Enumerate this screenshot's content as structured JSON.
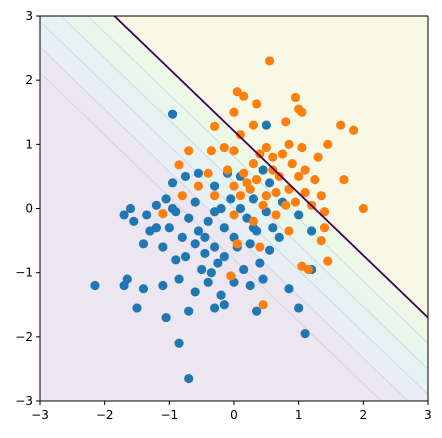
{
  "chart_data": {
    "type": "scatter",
    "title": "",
    "xlabel": "",
    "ylabel": "",
    "xlim": [
      -3,
      3
    ],
    "ylim": [
      -3,
      3
    ],
    "xticks": [
      "−3",
      "−2",
      "−1",
      "0",
      "1",
      "2",
      "3"
    ],
    "yticks": [
      "−3",
      "−2",
      "−1",
      "0",
      "1",
      "2",
      "3"
    ],
    "xtick_values": [
      -3,
      -2,
      -1,
      0,
      1,
      2,
      3
    ],
    "ytick_values": [
      -3,
      -2,
      -1,
      0,
      1,
      2,
      3
    ],
    "grid": false,
    "legend": "none",
    "decision_boundary": {
      "description": "straight line separating the two classes",
      "points": [
        [
          -1.85,
          3.0
        ],
        [
          3.0,
          -1.7
        ]
      ],
      "color": "#440154"
    },
    "background": {
      "low_side_color": "#ece6f0",
      "high_side_color": "#f7f8e6",
      "band_colors": [
        "#e9eef5",
        "#e6f2f2",
        "#e8f6ec",
        "#eef8e7"
      ],
      "contour_line_color": "#c8d3e2"
    },
    "series": [
      {
        "color": "#1f77b4",
        "points": [
          [
            -0.95,
            1.47
          ],
          [
            0.5,
            1.3
          ],
          [
            0.55,
            0.4
          ],
          [
            -0.3,
            0.35
          ],
          [
            -0.75,
            0.5
          ],
          [
            -0.95,
            0.4
          ],
          [
            -0.55,
            0.55
          ],
          [
            -0.1,
            0.55
          ],
          [
            0.1,
            0.5
          ],
          [
            0.3,
            0.15
          ],
          [
            0.5,
            -0.05
          ],
          [
            0.75,
            0.1
          ],
          [
            1.0,
            -0.1
          ],
          [
            1.2,
            -0.35
          ],
          [
            -1.6,
            0.0
          ],
          [
            -1.7,
            -0.1
          ],
          [
            -1.55,
            -0.2
          ],
          [
            -1.35,
            -0.1
          ],
          [
            -1.2,
            -0.3
          ],
          [
            -1.05,
            0.15
          ],
          [
            -0.9,
            -0.05
          ],
          [
            -0.7,
            -0.15
          ],
          [
            -0.55,
            -0.35
          ],
          [
            -0.4,
            -0.2
          ],
          [
            -0.3,
            -0.05
          ],
          [
            -0.15,
            -0.3
          ],
          [
            0.0,
            -0.45
          ],
          [
            0.2,
            -0.15
          ],
          [
            0.35,
            -0.35
          ],
          [
            -1.4,
            -0.55
          ],
          [
            -1.1,
            -0.6
          ],
          [
            -0.8,
            -0.45
          ],
          [
            -0.75,
            -0.75
          ],
          [
            -0.6,
            -0.55
          ],
          [
            -0.45,
            -0.7
          ],
          [
            -0.3,
            -0.6
          ],
          [
            -0.15,
            -0.75
          ],
          [
            0.05,
            -0.6
          ],
          [
            0.25,
            -0.55
          ],
          [
            0.4,
            -0.85
          ],
          [
            0.55,
            -0.65
          ],
          [
            -1.65,
            -1.1
          ],
          [
            -1.4,
            -1.25
          ],
          [
            -1.1,
            -1.2
          ],
          [
            -0.85,
            -1.1
          ],
          [
            -0.6,
            -1.3
          ],
          [
            -0.35,
            -1.0
          ],
          [
            -0.2,
            -1.35
          ],
          [
            0.0,
            -1.15
          ],
          [
            0.25,
            -1.2
          ],
          [
            0.45,
            -1.1
          ],
          [
            0.85,
            -1.25
          ],
          [
            1.2,
            -0.95
          ],
          [
            -2.15,
            -1.2
          ],
          [
            -1.5,
            -1.55
          ],
          [
            -1.05,
            -1.7
          ],
          [
            -0.7,
            -1.6
          ],
          [
            -0.3,
            -1.55
          ],
          [
            0.35,
            -1.6
          ],
          [
            1.0,
            -1.55
          ],
          [
            1.1,
            -1.95
          ],
          [
            -0.85,
            -2.1
          ],
          [
            -0.7,
            -2.65
          ],
          [
            -0.5,
            -0.95
          ],
          [
            -0.25,
            -0.85
          ],
          [
            0.15,
            -0.95
          ],
          [
            0.6,
            -0.3
          ],
          [
            -1.3,
            -0.35
          ],
          [
            -1.0,
            -0.3
          ],
          [
            -0.05,
            0.15
          ],
          [
            0.1,
            0.0
          ],
          [
            0.45,
            0.6
          ],
          [
            -0.6,
            0.1
          ],
          [
            -0.2,
            0.0
          ],
          [
            -1.2,
            0.05
          ],
          [
            -0.45,
            -0.45
          ],
          [
            -0.9,
            -0.8
          ],
          [
            0.3,
            -0.3
          ],
          [
            -1.7,
            -1.2
          ],
          [
            -0.4,
            -1.15
          ],
          [
            -0.15,
            -1.5
          ],
          [
            -0.95,
            0.0
          ],
          [
            0.7,
            -0.45
          ]
        ]
      },
      {
        "color": "#ff7f0e",
        "points": [
          [
            0.55,
            2.3
          ],
          [
            0.05,
            1.82
          ],
          [
            0.15,
            1.75
          ],
          [
            0.35,
            1.63
          ],
          [
            0.95,
            1.73
          ],
          [
            1.0,
            1.55
          ],
          [
            1.05,
            1.5
          ],
          [
            0.0,
            1.5
          ],
          [
            -0.3,
            1.28
          ],
          [
            0.1,
            1.15
          ],
          [
            0.3,
            1.3
          ],
          [
            0.8,
            1.35
          ],
          [
            1.65,
            1.3
          ],
          [
            1.85,
            1.22
          ],
          [
            0.5,
            0.95
          ],
          [
            0.85,
            1.0
          ],
          [
            1.05,
            0.95
          ],
          [
            1.3,
            0.8
          ],
          [
            1.45,
            1.0
          ],
          [
            -0.35,
            0.9
          ],
          [
            -0.15,
            0.95
          ],
          [
            0.0,
            0.9
          ],
          [
            0.4,
            0.85
          ],
          [
            0.6,
            0.8
          ],
          [
            0.9,
            0.7
          ],
          [
            1.1,
            0.6
          ],
          [
            -0.7,
            0.9
          ],
          [
            -0.85,
            0.68
          ],
          [
            -0.4,
            0.55
          ],
          [
            -0.1,
            0.6
          ],
          [
            0.15,
            0.55
          ],
          [
            0.3,
            0.7
          ],
          [
            0.7,
            0.5
          ],
          [
            1.0,
            0.5
          ],
          [
            1.25,
            0.45
          ],
          [
            1.7,
            0.45
          ],
          [
            0.0,
            0.35
          ],
          [
            0.25,
            0.3
          ],
          [
            0.5,
            0.2
          ],
          [
            0.85,
            0.3
          ],
          [
            1.1,
            0.25
          ],
          [
            1.35,
            0.2
          ],
          [
            -0.8,
            0.2
          ],
          [
            -0.3,
            0.2
          ],
          [
            0.1,
            0.2
          ],
          [
            0.45,
            0.05
          ],
          [
            0.8,
            0.05
          ],
          [
            1.4,
            -0.05
          ],
          [
            2.0,
            0.0
          ],
          [
            0.0,
            -0.1
          ],
          [
            0.3,
            -0.2
          ],
          [
            0.65,
            -0.1
          ],
          [
            0.85,
            -0.35
          ],
          [
            1.4,
            -0.3
          ],
          [
            -1.1,
            -0.08
          ],
          [
            0.05,
            -0.55
          ],
          [
            0.4,
            -0.6
          ],
          [
            1.35,
            -0.5
          ],
          [
            1.45,
            -0.82
          ],
          [
            1.05,
            -0.9
          ],
          [
            1.15,
            -0.95
          ],
          [
            -0.05,
            -1.05
          ],
          [
            0.45,
            -1.5
          ],
          [
            0.2,
            0.4
          ],
          [
            0.65,
            0.25
          ],
          [
            0.95,
            0.1
          ],
          [
            -0.55,
            0.35
          ],
          [
            1.2,
            0.05
          ],
          [
            0.6,
            0.6
          ],
          [
            0.35,
            0.45
          ],
          [
            0.75,
            0.85
          ]
        ]
      }
    ]
  }
}
